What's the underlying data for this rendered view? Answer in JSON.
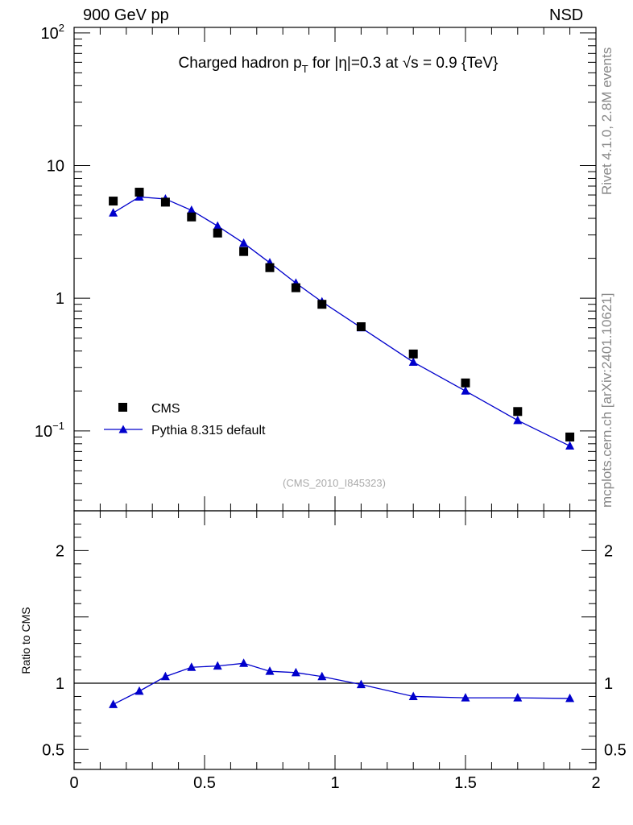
{
  "header": {
    "left": "900 GeV pp",
    "right": "NSD"
  },
  "side": {
    "rivet": "Rivet 4.1.0,  2.8M events",
    "mcplots": "mcplots.cern.ch [arXiv:2401.10621]"
  },
  "chart_data": [
    {
      "type": "scatter",
      "panel": "main",
      "title": "Charged hadron p_T for |η|=0.3 at √s = 0.9 {TeV}",
      "title_parts": {
        "main": "Charged hadron p",
        "sub": "T",
        "rest": " for |η|=0.3 at √s = 0.9 {TeV}"
      },
      "yscale": "log",
      "xlim": [
        0,
        2
      ],
      "ylim": [
        0.025,
        110
      ],
      "yticks": [
        {
          "value": 0.1,
          "label": "10",
          "sup": "−1"
        },
        {
          "value": 1,
          "label": "1",
          "sup": ""
        },
        {
          "value": 10,
          "label": "10",
          "sup": ""
        },
        {
          "value": 100,
          "label": "10",
          "sup": "2"
        }
      ],
      "watermark": "(CMS_2010_I845323)",
      "legend_position": "lower-left",
      "series": [
        {
          "name": "CMS",
          "style": "square-marker",
          "color": "#000000",
          "x": [
            0.15,
            0.25,
            0.35,
            0.45,
            0.55,
            0.65,
            0.75,
            0.85,
            0.95,
            1.1,
            1.3,
            1.5,
            1.7,
            1.9
          ],
          "y": [
            5.4,
            6.3,
            5.3,
            4.1,
            3.1,
            2.25,
            1.7,
            1.2,
            0.9,
            0.61,
            0.38,
            0.23,
            0.14,
            0.09
          ]
        },
        {
          "name": "Pythia 8.315 default",
          "style": "triangle-line",
          "color": "#0000cc",
          "x": [
            0.15,
            0.25,
            0.35,
            0.45,
            0.55,
            0.65,
            0.75,
            0.85,
            0.95,
            1.1,
            1.3,
            1.5,
            1.7,
            1.9
          ],
          "y": [
            4.4,
            5.8,
            5.6,
            4.6,
            3.5,
            2.6,
            1.85,
            1.3,
            0.94,
            0.6,
            0.33,
            0.2,
            0.12,
            0.077
          ]
        }
      ]
    },
    {
      "type": "line",
      "panel": "ratio",
      "ylabel": "Ratio to CMS",
      "xlim": [
        0,
        2
      ],
      "ylim": [
        0.35,
        2.3
      ],
      "yticks": [
        {
          "value": 0.5,
          "label": "0.5"
        },
        {
          "value": 1,
          "label": "1"
        },
        {
          "value": 2,
          "label": "2"
        }
      ],
      "xticks": [
        {
          "value": 0,
          "label": "0"
        },
        {
          "value": 0.5,
          "label": "0.5"
        },
        {
          "value": 1,
          "label": "1"
        },
        {
          "value": 1.5,
          "label": "1.5"
        },
        {
          "value": 2,
          "label": "2"
        }
      ],
      "reference": 1,
      "series": [
        {
          "name": "Pythia 8.315 default",
          "color": "#0000cc",
          "x": [
            0.15,
            0.25,
            0.35,
            0.45,
            0.55,
            0.65,
            0.75,
            0.85,
            0.95,
            1.1,
            1.3,
            1.5,
            1.7,
            1.9
          ],
          "y": [
            0.84,
            0.94,
            1.05,
            1.12,
            1.13,
            1.15,
            1.09,
            1.08,
            1.05,
            0.99,
            0.9,
            0.89,
            0.89,
            0.885
          ]
        }
      ]
    }
  ]
}
